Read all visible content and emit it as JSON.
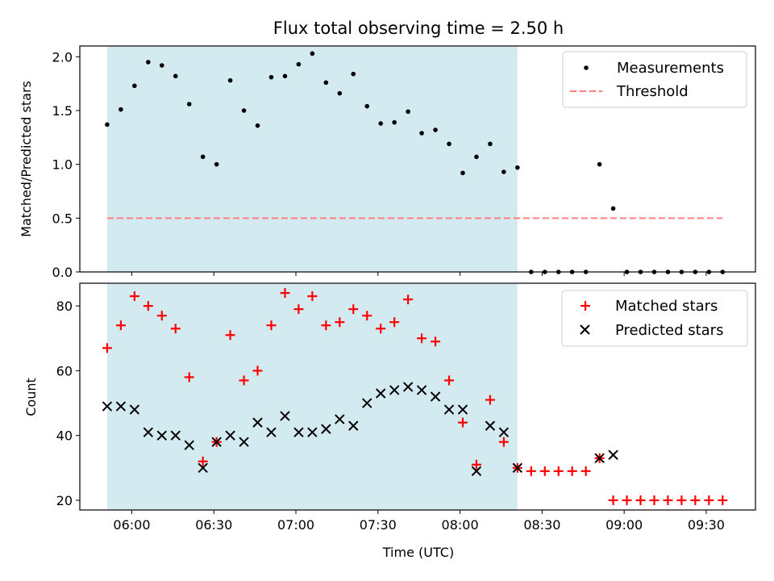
{
  "chart_data": {
    "type": "scatter",
    "title": "Flux total observing time = 2.50 h",
    "xlabel": "Time (UTC)",
    "x_tick_labels": [
      "06:00",
      "06:30",
      "07:00",
      "07:30",
      "08:00",
      "08:30",
      "09:00",
      "09:30"
    ],
    "x_ticks": [
      "06:00",
      "06:30",
      "07:00",
      "07:30",
      "08:00",
      "08:30",
      "09:00",
      "09:30"
    ],
    "x_range": [
      "05:41",
      "09:48"
    ],
    "shaded_interval": [
      "05:51",
      "08:21"
    ],
    "shaded_color": "#d4eaf1",
    "x_times": [
      "05:51",
      "05:56",
      "06:01",
      "06:06",
      "06:11",
      "06:16",
      "06:21",
      "06:26",
      "06:31",
      "06:36",
      "06:41",
      "06:46",
      "06:51",
      "06:56",
      "07:01",
      "07:06",
      "07:11",
      "07:16",
      "07:21",
      "07:26",
      "07:31",
      "07:36",
      "07:41",
      "07:46",
      "07:51",
      "07:56",
      "08:01",
      "08:06",
      "08:11",
      "08:16",
      "08:21",
      "08:26",
      "08:31",
      "08:36",
      "08:41",
      "08:46",
      "08:51",
      "08:56",
      "09:01",
      "09:06",
      "09:11",
      "09:16",
      "09:21",
      "09:26",
      "09:31",
      "09:36"
    ],
    "panels": [
      {
        "ylabel": "Matched/Predicted stars",
        "ylim": [
          0,
          2.1
        ],
        "y_ticks": [
          0.0,
          0.5,
          1.0,
          1.5,
          2.0
        ],
        "y_tick_labels": [
          "0.0",
          "0.5",
          "1.0",
          "1.5",
          "2.0"
        ],
        "legend_position": "top-right",
        "series": [
          {
            "name": "Measurements",
            "marker": "dot",
            "color": "#000000",
            "values": [
              1.37,
              1.51,
              1.73,
              1.95,
              1.92,
              1.82,
              1.56,
              1.07,
              1.0,
              1.78,
              1.5,
              1.36,
              1.81,
              1.82,
              1.93,
              2.03,
              1.76,
              1.66,
              1.84,
              1.54,
              1.38,
              1.39,
              1.49,
              1.29,
              1.32,
              1.19,
              0.92,
              1.07,
              1.19,
              0.93,
              0.97,
              0,
              0,
              0,
              0,
              0,
              1.0,
              0.59,
              0,
              0,
              0,
              0,
              0,
              0,
              0,
              0
            ]
          },
          {
            "name": "Threshold",
            "marker": "dashed-line",
            "color": "#ff7f7f",
            "value": 0.5,
            "x_extent": [
              "05:51",
              "09:36"
            ]
          }
        ]
      },
      {
        "ylabel": "Count",
        "ylim": [
          17,
          87
        ],
        "y_ticks": [
          20,
          40,
          60,
          80
        ],
        "y_tick_labels": [
          "20",
          "40",
          "60",
          "80"
        ],
        "legend_position": "top-right",
        "series": [
          {
            "name": "Matched stars",
            "marker": "plus",
            "color": "#ff0000",
            "values": [
              67,
              74,
              83,
              80,
              77,
              73,
              58,
              32,
              38,
              71,
              57,
              60,
              74,
              84,
              79,
              83,
              74,
              75,
              79,
              77,
              73,
              75,
              82,
              70,
              69,
              57,
              44,
              31,
              51,
              38,
              30,
              29,
              29,
              29,
              29,
              29,
              33,
              20,
              20,
              20,
              20,
              20,
              20,
              20,
              20,
              20
            ]
          },
          {
            "name": "Predicted stars",
            "marker": "x",
            "color": "#000000",
            "values": [
              49,
              49,
              48,
              41,
              40,
              40,
              37,
              30,
              38,
              40,
              38,
              44,
              41,
              46,
              41,
              41,
              42,
              45,
              43,
              50,
              53,
              54,
              55,
              54,
              52,
              48,
              48,
              29,
              43,
              41,
              30,
              null,
              null,
              null,
              null,
              null,
              33,
              34,
              null,
              null,
              null,
              null,
              null,
              null,
              null,
              null
            ]
          }
        ]
      }
    ]
  }
}
